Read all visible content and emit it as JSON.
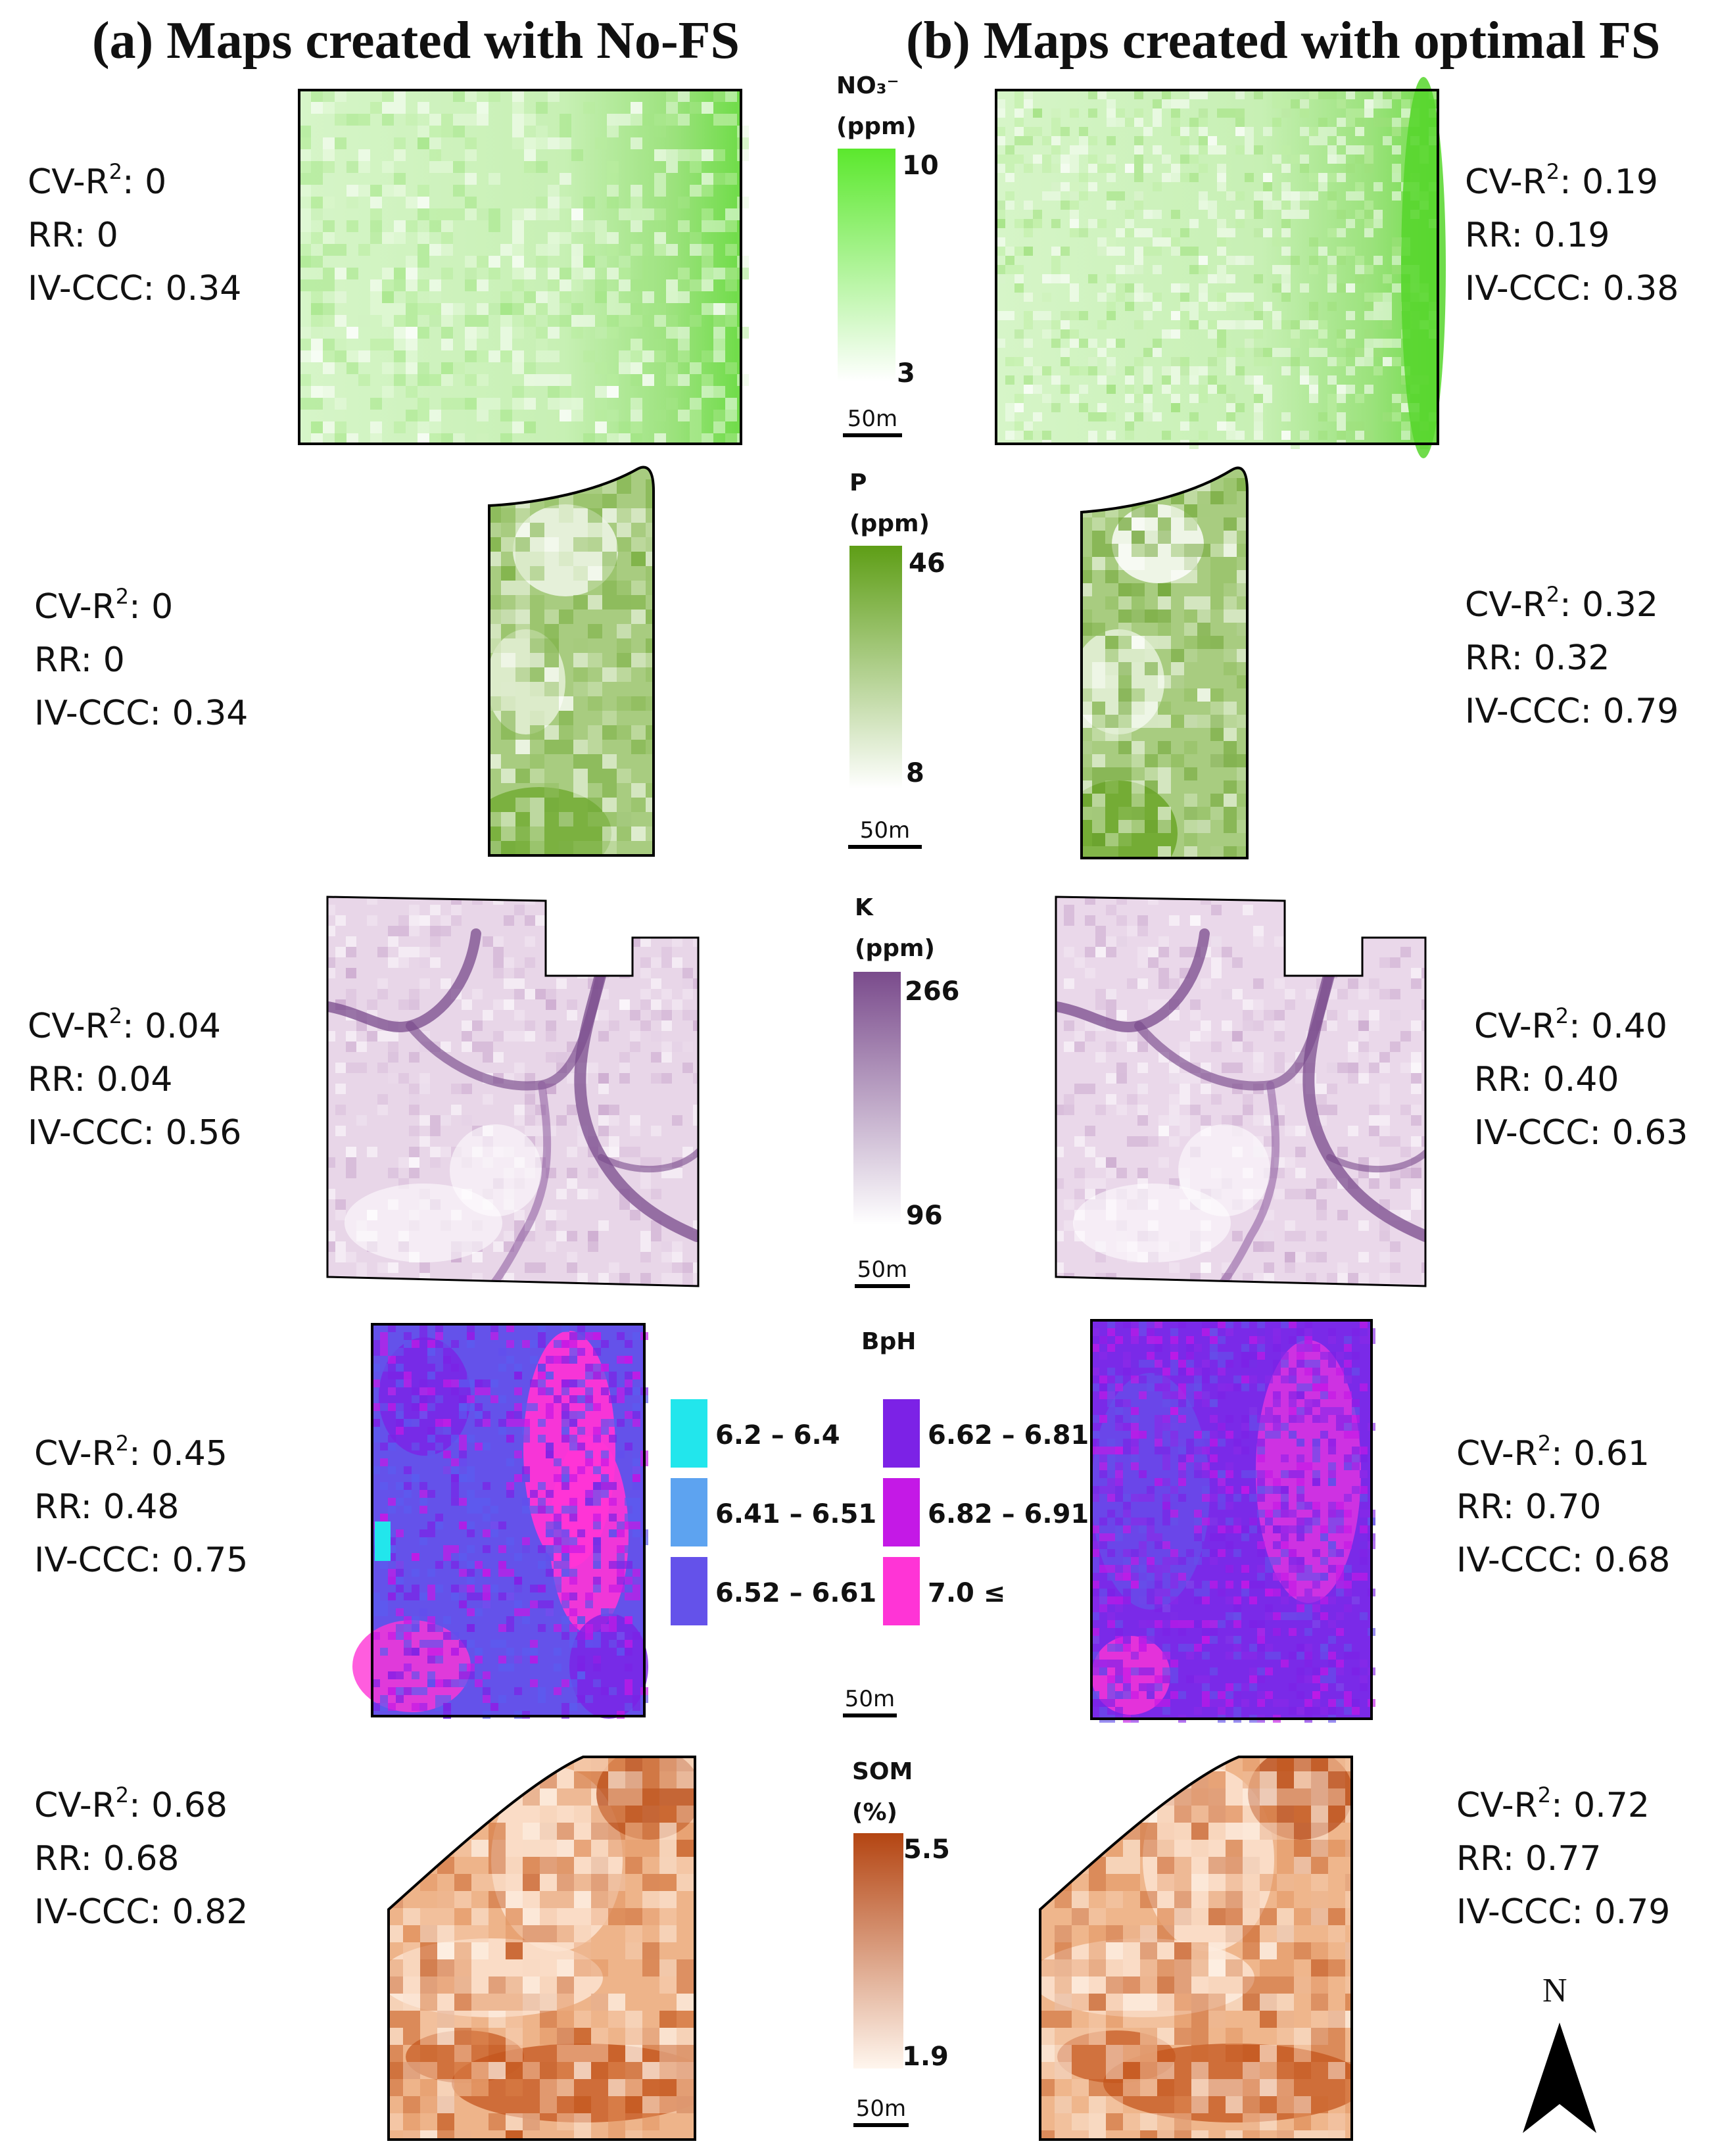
{
  "header": {
    "left": "(a) Maps created with No-FS",
    "right": "(b) Maps created with optimal FS"
  },
  "rows": {
    "no3": {
      "legend_title_line1": "NO₃⁻",
      "legend_title_line2": "(ppm)",
      "legend_max": "10",
      "legend_min": "3",
      "legend_color_high": "#5be82d",
      "legend_color_low": "#ffffff",
      "scale_bar": "50m",
      "left_metrics": {
        "cv_label": "CV-R",
        "cv_value": ": 0",
        "rr": "RR: 0",
        "iv": "IV-CCC: 0.34"
      },
      "right_metrics": {
        "cv_label": "CV-R",
        "cv_value": ": 0.19",
        "rr": "RR: 0.19",
        "iv": "IV-CCC: 0.38"
      }
    },
    "p": {
      "legend_title_line1": "P",
      "legend_title_line2": "(ppm)",
      "legend_max": "46",
      "legend_min": "8",
      "legend_color_high": "#5e9e16",
      "legend_color_low": "#ffffff",
      "scale_bar": "50m",
      "left_metrics": {
        "cv_label": "CV-R",
        "cv_value": ": 0",
        "rr": "RR: 0",
        "iv": "IV-CCC: 0.34"
      },
      "right_metrics": {
        "cv_label": "CV-R",
        "cv_value": ": 0.32",
        "rr": "RR: 0.32",
        "iv": "IV-CCC: 0.79"
      }
    },
    "k": {
      "legend_title_line1": "K",
      "legend_title_line2": "(ppm)",
      "legend_max": "266",
      "legend_min": "96",
      "legend_color_high": "#7a4b8c",
      "legend_color_low": "#ffffff",
      "scale_bar": "50m",
      "left_metrics": {
        "cv_label": "CV-R",
        "cv_value": ": 0.04",
        "rr": "RR: 0.04",
        "iv": "IV-CCC: 0.56"
      },
      "right_metrics": {
        "cv_label": "CV-R",
        "cv_value": ": 0.40",
        "rr": "RR: 0.40",
        "iv": "IV-CCC: 0.63"
      }
    },
    "bph": {
      "legend_title": "BpH",
      "classes": [
        {
          "label": "6.2 – 6.4",
          "color": "#22e6ec"
        },
        {
          "label": "6.41 – 6.51",
          "color": "#5da3f0"
        },
        {
          "label": "6.52 – 6.61",
          "color": "#6452ea"
        },
        {
          "label": "6.62 – 6.81",
          "color": "#7c22e6"
        },
        {
          "label": "6.82 – 6.91",
          "color": "#c419e6"
        },
        {
          "label": "7.0 ≤",
          "color": "#ff34d6"
        }
      ],
      "scale_bar": "50m",
      "left_metrics": {
        "cv_label": "CV-R",
        "cv_value": ": 0.45",
        "rr": "RR: 0.48",
        "iv": "IV-CCC: 0.75"
      },
      "right_metrics": {
        "cv_label": "CV-R",
        "cv_value": ": 0.61",
        "rr": "RR: 0.70",
        "iv": "IV-CCC: 0.68"
      }
    },
    "som": {
      "legend_title_line1": "SOM",
      "legend_title_line2": "(%)",
      "legend_max": "5.5",
      "legend_min": "1.9",
      "legend_color_high": "#b44512",
      "legend_color_low": "#fff6ee",
      "scale_bar": "50m",
      "left_metrics": {
        "cv_label": "CV-R",
        "cv_value": ": 0.68",
        "rr": "RR: 0.68",
        "iv": "IV-CCC: 0.82"
      },
      "right_metrics": {
        "cv_label": "CV-R",
        "cv_value": ": 0.72",
        "rr": "RR: 0.77",
        "iv": "IV-CCC: 0.79"
      }
    }
  },
  "north_arrow": {
    "label": "N"
  },
  "superscript": "2"
}
